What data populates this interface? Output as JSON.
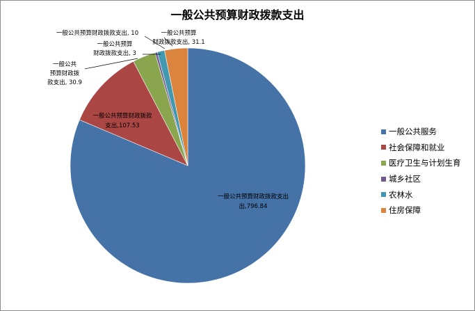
{
  "chart_data": {
    "type": "pie",
    "title": "一般公共预算财政拨款支出",
    "legend_position": "right",
    "slices": [
      {
        "category": "一般公共服务",
        "value": 796.84,
        "color": "#4572A7",
        "label_name": "一般公共预算财政拨款支出",
        "label_value": "796.84"
      },
      {
        "category": "社会保障和就业",
        "value": 107.53,
        "color": "#AA4643",
        "label_name": "一般公共预算财政拨款支出",
        "label_value": "107.53"
      },
      {
        "category": "医疗卫生与计划生育",
        "value": 30.9,
        "color": "#89A54E",
        "label_name": "一般公共预算财政拨款支出",
        "label_value": "30.9"
      },
      {
        "category": "城乡社区",
        "value": 3,
        "color": "#71588F",
        "label_name": "一般公共预算财政拨款支出",
        "label_value": "3"
      },
      {
        "category": "农林水",
        "value": 10,
        "color": "#4198AF",
        "label_name": "一般公共预算财政拨款支出",
        "label_value": "10"
      },
      {
        "category": "住房保障",
        "value": 31.1,
        "color": "#DB843D",
        "label_name": "一般公共预算财政拨款支出",
        "label_value": "31.1"
      }
    ]
  }
}
